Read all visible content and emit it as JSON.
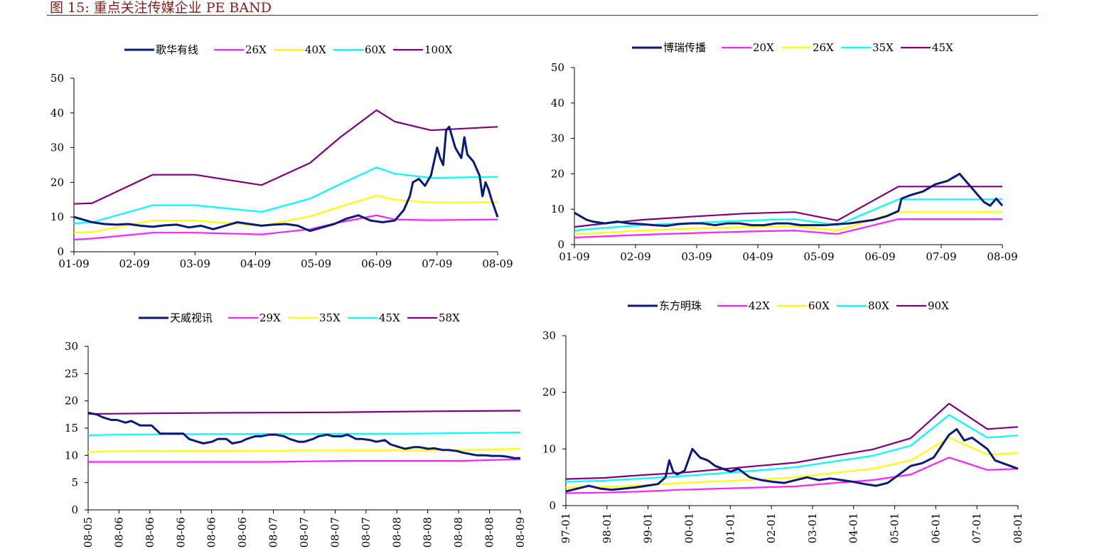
{
  "figure_title": "图 15: 重点关注传媒企业 PE BAND",
  "chart_data": [
    {
      "type": "line",
      "legend_position": "top",
      "grid": false,
      "x_ticks": [
        "01-09",
        "02-09",
        "03-09",
        "04-09",
        "05-09",
        "06-09",
        "07-09",
        "08-09"
      ],
      "xlim": [
        0,
        7
      ],
      "ylim": [
        0,
        50
      ],
      "y_ticks": [
        0,
        10,
        20,
        30,
        40,
        50
      ],
      "series": [
        {
          "name": "歌华有线",
          "color": "#0b1a7a",
          "x": [
            0,
            0.1,
            0.3,
            0.5,
            0.7,
            0.9,
            1.1,
            1.3,
            1.5,
            1.7,
            1.9,
            2.1,
            2.3,
            2.5,
            2.7,
            2.9,
            3.1,
            3.3,
            3.5,
            3.7,
            3.9,
            4.1,
            4.3,
            4.5,
            4.7,
            4.9,
            5.1,
            5.3,
            5.45,
            5.55,
            5.6,
            5.7,
            5.8,
            5.9,
            6.0,
            6.05,
            6.1,
            6.15,
            6.2,
            6.3,
            6.4,
            6.45,
            6.5,
            6.6,
            6.7,
            6.75,
            6.8,
            6.85,
            6.9,
            7.0
          ],
          "y": [
            10,
            9.5,
            8.5,
            8,
            7.8,
            8,
            7.5,
            7.2,
            7.6,
            7.8,
            7,
            7.5,
            6.5,
            7.5,
            8.5,
            8,
            7.5,
            7.8,
            8,
            7.5,
            6,
            7,
            8,
            9.5,
            10.5,
            9,
            8.5,
            9,
            12,
            16,
            20,
            21,
            19,
            22,
            30,
            27,
            25,
            35,
            36,
            30,
            27,
            33,
            28,
            26,
            22,
            16,
            20,
            18,
            15,
            10
          ]
        },
        {
          "name": "26X",
          "color": "#ff22ff",
          "x": [
            0,
            0.3,
            1.3,
            2.0,
            3.1,
            3.9,
            4.4,
            5.0,
            5.3,
            5.9,
            7.0
          ],
          "y": [
            3.5,
            3.8,
            5.5,
            5.5,
            5.0,
            6.5,
            8.5,
            10.5,
            9.3,
            9.1,
            9.3
          ]
        },
        {
          "name": "40X",
          "color": "#ffff00",
          "x": [
            0,
            0.3,
            1.3,
            2.0,
            3.1,
            3.9,
            4.4,
            5.0,
            5.3,
            5.9,
            7.0
          ],
          "y": [
            5.5,
            5.7,
            9.0,
            9.0,
            7.5,
            10.2,
            13.0,
            16.2,
            15.0,
            14.2,
            14.3
          ]
        },
        {
          "name": "60X",
          "color": "#00ffff",
          "x": [
            0,
            0.3,
            1.3,
            2.0,
            3.1,
            3.9,
            4.4,
            5.0,
            5.3,
            5.9,
            7.0
          ],
          "y": [
            8.2,
            8.5,
            13.4,
            13.4,
            11.5,
            15.3,
            19.5,
            24.3,
            22.5,
            21.3,
            21.6
          ]
        },
        {
          "name": "100X",
          "color": "#800080",
          "x": [
            0,
            0.3,
            1.3,
            2.0,
            3.1,
            3.9,
            4.4,
            5.0,
            5.3,
            5.9,
            7.0
          ],
          "y": [
            13.8,
            14.0,
            22.2,
            22.2,
            19.2,
            25.6,
            33.0,
            40.8,
            37.5,
            35.0,
            36.0
          ]
        }
      ]
    },
    {
      "type": "line",
      "legend_position": "top",
      "grid": false,
      "x_ticks": [
        "01-09",
        "02-09",
        "03-09",
        "04-09",
        "05-09",
        "06-09",
        "07-09",
        "08-09"
      ],
      "xlim": [
        0,
        7
      ],
      "ylim": [
        0,
        50
      ],
      "y_ticks": [
        0,
        10,
        20,
        30,
        40,
        50
      ],
      "series": [
        {
          "name": "博瑞传播",
          "color": "#0b1a7a",
          "x": [
            0,
            0.1,
            0.2,
            0.3,
            0.5,
            0.7,
            0.9,
            1.1,
            1.3,
            1.5,
            1.7,
            1.9,
            2.1,
            2.3,
            2.5,
            2.7,
            2.9,
            3.1,
            3.3,
            3.5,
            3.7,
            3.9,
            4.1,
            4.3,
            4.5,
            4.7,
            4.9,
            5.1,
            5.3,
            5.35,
            5.5,
            5.7,
            5.9,
            6.1,
            6.2,
            6.3,
            6.4,
            6.5,
            6.6,
            6.7,
            6.8,
            6.9,
            7.0
          ],
          "y": [
            9,
            8,
            7,
            6.5,
            6,
            6.5,
            6,
            5.8,
            5.5,
            5.3,
            5.8,
            6,
            6,
            5.5,
            6,
            6,
            5.5,
            5.5,
            6,
            6,
            5.5,
            5.5,
            5.5,
            5.8,
            6,
            6.5,
            7,
            8,
            9.5,
            13,
            14,
            15,
            17,
            18,
            19,
            20,
            18,
            16,
            14,
            12,
            11,
            13,
            11
          ]
        },
        {
          "name": "20X",
          "color": "#ff22ff",
          "x": [
            0,
            0.3,
            1.1,
            2.0,
            2.8,
            3.6,
            4.3,
            5.3,
            7.0
          ],
          "y": [
            2.0,
            2.2,
            2.8,
            3.3,
            3.7,
            4.0,
            3.0,
            7.2,
            7.2
          ]
        },
        {
          "name": "26X",
          "color": "#ffff00",
          "x": [
            0,
            0.3,
            1.1,
            2.0,
            2.8,
            3.6,
            4.3,
            5.3,
            7.0
          ],
          "y": [
            3.0,
            3.2,
            4.0,
            4.6,
            5.0,
            5.2,
            4.0,
            9.3,
            9.3
          ]
        },
        {
          "name": "35X",
          "color": "#00ffff",
          "x": [
            0,
            0.3,
            1.1,
            2.0,
            2.8,
            3.6,
            4.3,
            5.3,
            7.0
          ],
          "y": [
            4.0,
            4.5,
            5.5,
            6.2,
            6.8,
            7.2,
            5.5,
            12.8,
            12.8
          ]
        },
        {
          "name": "45X",
          "color": "#800080",
          "x": [
            0,
            0.3,
            1.1,
            2.0,
            2.8,
            3.6,
            4.3,
            5.3,
            7.0
          ],
          "y": [
            5.0,
            5.6,
            7.0,
            8.0,
            8.8,
            9.2,
            6.8,
            16.4,
            16.4
          ]
        }
      ]
    },
    {
      "type": "line",
      "legend_position": "top",
      "grid": false,
      "x_ticks": [
        "08-05",
        "08-06",
        "08-06",
        "08-06",
        "08-06",
        "08-06",
        "08-07",
        "08-07",
        "08-07",
        "08-07",
        "08-08",
        "08-08",
        "08-08",
        "08-08",
        "08-09"
      ],
      "xlim": [
        0,
        15
      ],
      "ylim": [
        0,
        30
      ],
      "y_ticks": [
        0,
        5,
        10,
        15,
        20,
        25,
        30
      ],
      "series": [
        {
          "name": "天威视讯",
          "color": "#0b1a7a",
          "x": [
            0,
            0.3,
            0.5,
            0.8,
            1.0,
            1.3,
            1.5,
            1.8,
            2.0,
            2.2,
            2.5,
            2.8,
            3.0,
            3.3,
            3.5,
            3.8,
            4.0,
            4.3,
            4.5,
            4.8,
            5.0,
            5.3,
            5.5,
            5.8,
            6.0,
            6.3,
            6.5,
            6.8,
            7.0,
            7.3,
            7.5,
            7.8,
            8.0,
            8.3,
            8.5,
            8.8,
            9.0,
            9.3,
            9.5,
            9.8,
            10.0,
            10.3,
            10.5,
            10.8,
            11.0,
            11.3,
            11.5,
            11.8,
            12.0,
            12.3,
            12.5,
            12.8,
            13.0,
            13.3,
            13.5,
            13.8,
            14.0,
            14.3,
            14.5,
            14.8,
            15.0
          ],
          "y": [
            17.8,
            17.5,
            17.0,
            16.5,
            16.5,
            16.0,
            16.3,
            15.5,
            15.5,
            15.5,
            14.0,
            14.0,
            14.0,
            14.0,
            13.0,
            12.5,
            12.2,
            12.5,
            13.0,
            13.0,
            12.2,
            12.5,
            13.0,
            13.5,
            13.5,
            13.8,
            13.8,
            13.5,
            13.0,
            12.5,
            12.5,
            13.0,
            13.5,
            13.8,
            13.5,
            13.5,
            13.8,
            13.0,
            13.0,
            12.8,
            12.5,
            12.8,
            12.0,
            11.5,
            11.2,
            11.5,
            11.5,
            11.2,
            11.3,
            11.0,
            11.0,
            10.8,
            10.5,
            10.2,
            10.0,
            10.0,
            9.9,
            9.9,
            9.8,
            9.5,
            9.5
          ]
        },
        {
          "name": "29X",
          "color": "#ff22ff",
          "x": [
            0,
            6.3,
            9.0,
            13.0,
            15.0
          ],
          "y": [
            8.8,
            8.8,
            9.0,
            9.0,
            9.3
          ]
        },
        {
          "name": "35X",
          "color": "#ffff00",
          "x": [
            0,
            1.0,
            9.0,
            12.0,
            15.0
          ],
          "y": [
            10.6,
            10.8,
            10.9,
            10.9,
            11.2
          ]
        },
        {
          "name": "45X",
          "color": "#00ffff",
          "x": [
            0,
            1.0,
            4.0,
            11.3,
            15.0
          ],
          "y": [
            13.7,
            13.8,
            13.9,
            14.0,
            14.2
          ]
        },
        {
          "name": "58X",
          "color": "#800080",
          "x": [
            0,
            2.0,
            4.5,
            8.5,
            12.3,
            15.0
          ],
          "y": [
            17.6,
            17.7,
            17.8,
            17.9,
            18.1,
            18.2
          ]
        }
      ]
    },
    {
      "type": "line",
      "legend_position": "top",
      "grid": false,
      "x_ticks": [
        "97-01",
        "98-01",
        "99-01",
        "00-01",
        "01-01",
        "02-01",
        "03-01",
        "04-01",
        "05-01",
        "06-01",
        "07-01",
        "08-01"
      ],
      "xlim": [
        0,
        11.8
      ],
      "ylim": [
        0,
        30
      ],
      "y_ticks": [
        0,
        10,
        20,
        30
      ],
      "series": [
        {
          "name": "东方明珠",
          "color": "#0b1a7a",
          "x": [
            0,
            0.3,
            0.6,
            0.9,
            1.2,
            1.5,
            1.8,
            2.1,
            2.4,
            2.6,
            2.7,
            2.8,
            2.9,
            3.0,
            3.1,
            3.3,
            3.5,
            3.7,
            3.9,
            4.1,
            4.3,
            4.5,
            4.8,
            5.1,
            5.4,
            5.7,
            6.0,
            6.3,
            6.6,
            6.9,
            7.2,
            7.5,
            7.8,
            8.1,
            8.4,
            8.7,
            9.0,
            9.3,
            9.6,
            9.8,
            10.0,
            10.2,
            10.4,
            10.6,
            10.8,
            11.0,
            11.2,
            11.4,
            11.6,
            11.8
          ],
          "y": [
            2.5,
            3.0,
            3.5,
            3.0,
            2.8,
            3.0,
            3.2,
            3.5,
            3.8,
            5.0,
            8.0,
            6.0,
            5.5,
            5.8,
            6.2,
            10.0,
            8.5,
            8.0,
            7.0,
            6.5,
            6.0,
            6.5,
            5.0,
            4.5,
            4.2,
            4.0,
            4.5,
            5.0,
            4.5,
            4.8,
            4.5,
            4.2,
            3.8,
            3.5,
            4.0,
            5.5,
            7.0,
            7.5,
            8.5,
            10.5,
            12.5,
            13.5,
            11.5,
            12.0,
            11.0,
            10.0,
            8.0,
            7.5,
            7.0,
            6.5
          ]
        },
        {
          "name": "42X",
          "color": "#ff22ff",
          "x": [
            0,
            1.0,
            2.0,
            3.0,
            4.0,
            5.0,
            6.0,
            7.0,
            8.0,
            9.0,
            10.0,
            11.0,
            11.8
          ],
          "y": [
            2.2,
            2.3,
            2.5,
            2.8,
            3.0,
            3.2,
            3.4,
            4.0,
            4.5,
            5.5,
            8.5,
            6.3,
            6.5
          ]
        },
        {
          "name": "60X",
          "color": "#ffff00",
          "x": [
            0,
            1.0,
            2.0,
            3.0,
            4.0,
            5.0,
            6.0,
            7.0,
            8.0,
            9.0,
            10.0,
            11.0,
            11.8
          ],
          "y": [
            3.2,
            3.3,
            3.6,
            4.0,
            4.3,
            4.6,
            5.0,
            5.8,
            6.5,
            8.0,
            12.0,
            9.0,
            9.3
          ]
        },
        {
          "name": "80X",
          "color": "#00ffff",
          "x": [
            0,
            1.0,
            2.0,
            3.0,
            4.0,
            5.0,
            6.0,
            7.0,
            8.0,
            9.0,
            10.0,
            11.0,
            11.8
          ],
          "y": [
            4.2,
            4.4,
            4.8,
            5.2,
            5.7,
            6.2,
            6.8,
            7.8,
            8.8,
            10.6,
            16.0,
            12.0,
            12.4
          ]
        },
        {
          "name": "90X",
          "color": "#800080",
          "x": [
            0,
            1.0,
            2.0,
            3.0,
            4.0,
            5.0,
            6.0,
            7.0,
            8.0,
            9.0,
            10.0,
            11.0,
            11.8
          ],
          "y": [
            4.7,
            4.9,
            5.4,
            5.8,
            6.4,
            7.0,
            7.6,
            8.8,
            9.9,
            11.9,
            18.0,
            13.5,
            13.9
          ]
        }
      ]
    }
  ]
}
